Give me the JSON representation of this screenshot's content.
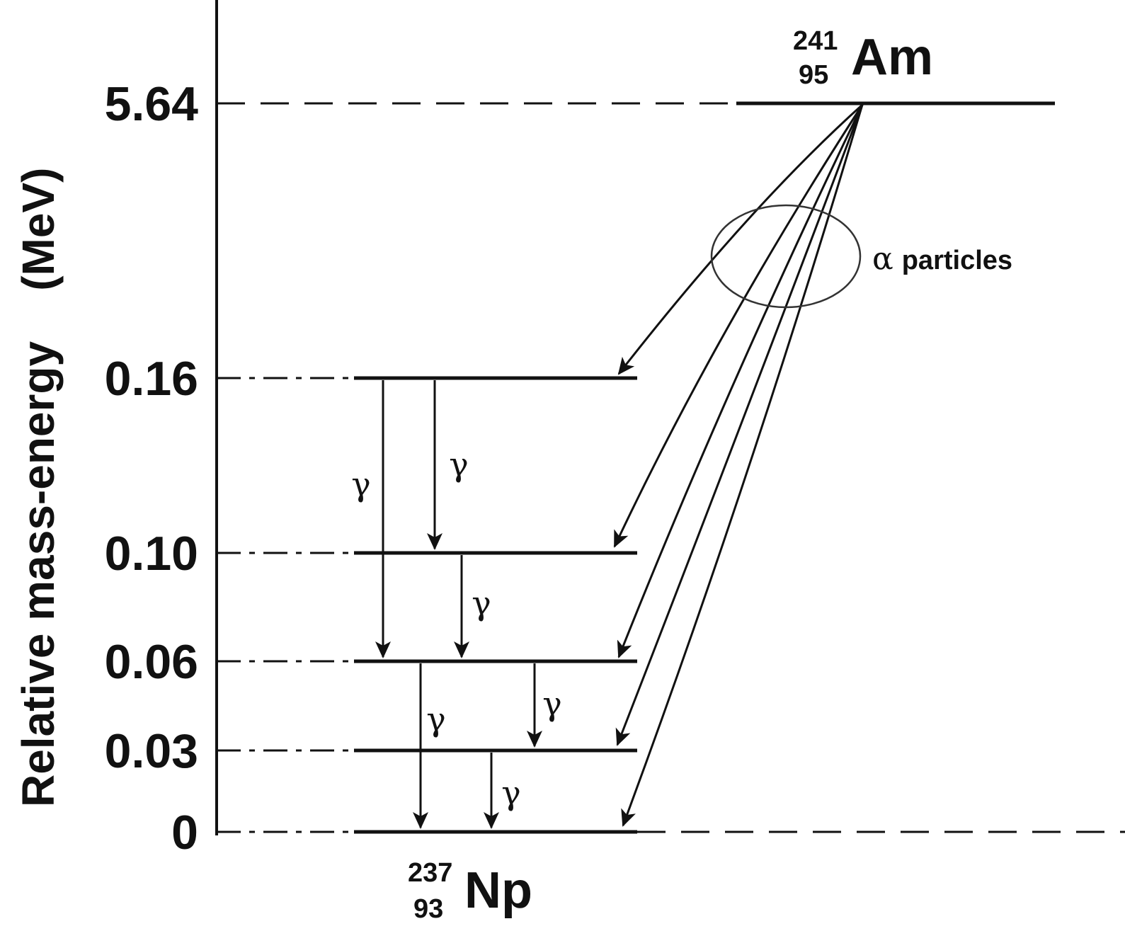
{
  "axis": {
    "title": "Relative mass-energy    (MeV)"
  },
  "levels": [
    {
      "id": "am241",
      "energy_label": "5.64",
      "value": 5.64,
      "guide": "dashed"
    },
    {
      "id": "np-0.16",
      "energy_label": "0.16",
      "value": 0.16,
      "guide": "dash-dot"
    },
    {
      "id": "np-0.10",
      "energy_label": "0.10",
      "value": 0.1,
      "guide": "dash-dot"
    },
    {
      "id": "np-0.06",
      "energy_label": "0.06",
      "value": 0.06,
      "guide": "dash-dot"
    },
    {
      "id": "np-0.03",
      "energy_label": "0.03",
      "value": 0.03,
      "guide": "dash-dot"
    },
    {
      "id": "np-0",
      "energy_label": "0",
      "value": 0,
      "guide": "dash-dot"
    }
  ],
  "parent": {
    "mass_number": "241",
    "atomic_number": "95",
    "symbol": "Am"
  },
  "daughter": {
    "mass_number": "237",
    "atomic_number": "93",
    "symbol": "Np"
  },
  "alpha": {
    "symbol": "α",
    "label": "particles",
    "targets": [
      "0.16",
      "0.10",
      "0.06",
      "0.03",
      "0"
    ]
  },
  "gamma": {
    "symbol": "γ",
    "transitions": [
      {
        "from": "0.16",
        "to": "0.06"
      },
      {
        "from": "0.16",
        "to": "0.10"
      },
      {
        "from": "0.10",
        "to": "0.06"
      },
      {
        "from": "0.06",
        "to": "0"
      },
      {
        "from": "0.06",
        "to": "0.03"
      },
      {
        "from": "0.03",
        "to": "0"
      }
    ]
  },
  "colors": {
    "ink": "#111111",
    "ellipse": "#333333",
    "background": "#ffffff"
  }
}
